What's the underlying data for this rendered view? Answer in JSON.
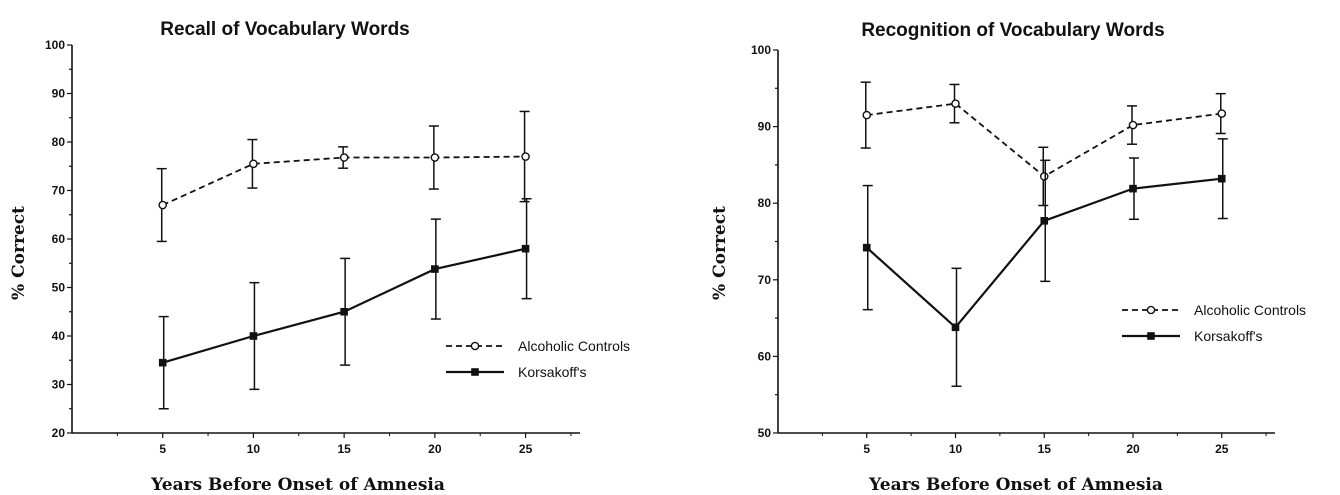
{
  "chart_data": [
    {
      "type": "line",
      "title": "Recall of Vocabulary Words",
      "xlabel": "Years Before Onset of Amnesia",
      "ylabel": "% Correct",
      "x": [
        5,
        10,
        15,
        20,
        25
      ],
      "xlim": [
        0,
        28
      ],
      "ylim": [
        20,
        100
      ],
      "yticks": [
        20,
        30,
        40,
        50,
        60,
        70,
        80,
        90,
        100
      ],
      "series": [
        {
          "name": "Alcoholic Controls",
          "values": [
            67,
            75.5,
            76.8,
            76.8,
            77
          ],
          "error": [
            7.5,
            5,
            2.2,
            6.5,
            9.3
          ],
          "marker": "open-circle",
          "line": "dashed"
        },
        {
          "name": "Korsakoff's",
          "values": [
            34.5,
            40,
            45,
            53.8,
            58
          ],
          "error": [
            9.5,
            11,
            11,
            10.3,
            10.3
          ],
          "marker": "filled-square",
          "line": "solid"
        }
      ],
      "legend_position": "bottom-right",
      "grid": false
    },
    {
      "type": "line",
      "title": "Recognition of Vocabulary Words",
      "xlabel": "Years Before Onset of Amnesia",
      "ylabel": "% Correct",
      "x": [
        5,
        10,
        15,
        20,
        25
      ],
      "xlim": [
        0,
        28
      ],
      "ylim": [
        50,
        100
      ],
      "yticks": [
        50,
        60,
        70,
        80,
        90,
        100
      ],
      "series": [
        {
          "name": "Alcoholic Controls",
          "values": [
            91.5,
            93,
            83.5,
            90.2,
            91.7
          ],
          "error": [
            4.3,
            2.5,
            3.8,
            2.5,
            2.6
          ],
          "marker": "open-circle",
          "line": "dashed"
        },
        {
          "name": "Korsakoff's",
          "values": [
            74.2,
            63.8,
            77.7,
            81.9,
            83.2
          ],
          "error": [
            8.1,
            7.7,
            7.9,
            4,
            5.2
          ],
          "marker": "filled-square",
          "line": "solid"
        }
      ],
      "legend_position": "right",
      "grid": false
    }
  ]
}
